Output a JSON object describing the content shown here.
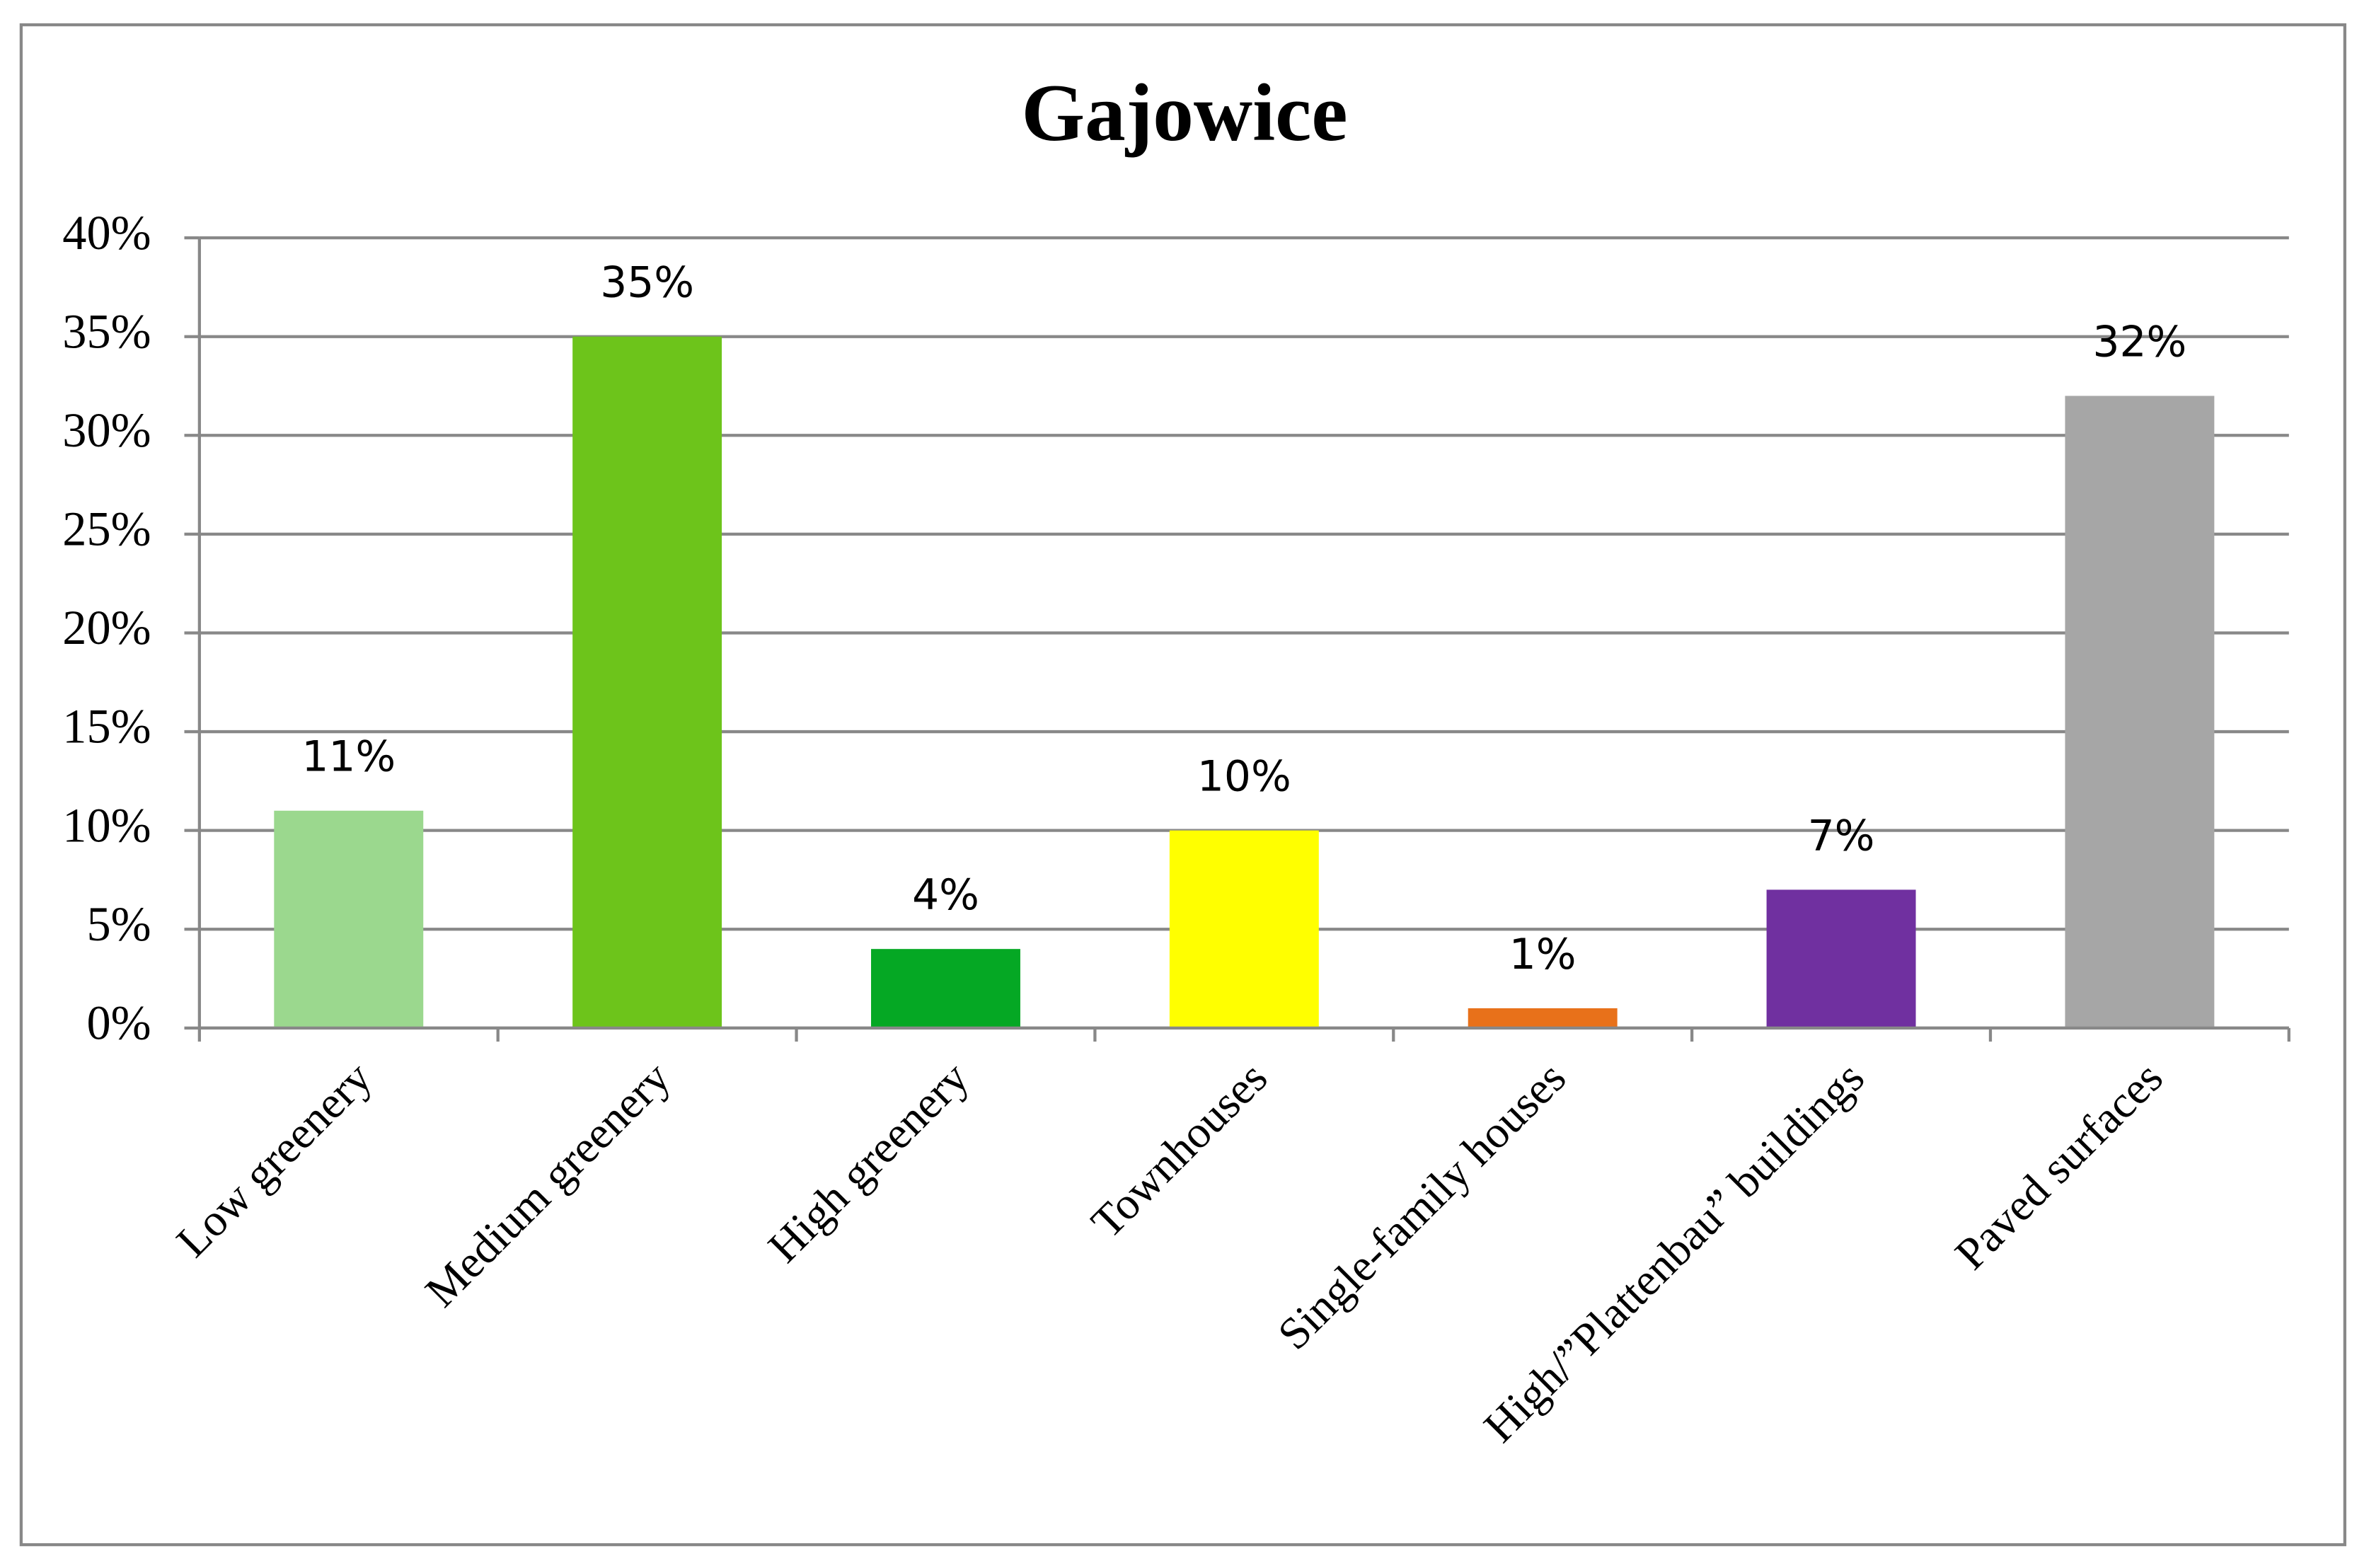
{
  "chart_data": {
    "type": "bar",
    "title": "Gajowice",
    "categories": [
      "Low greenery",
      "Medium greenery",
      "High greenery",
      "Townhouses",
      "Single-family houses",
      "High/”Plattenbau” buildings",
      "Paved surfaces"
    ],
    "values": [
      11,
      35,
      4,
      10,
      1,
      7,
      32
    ],
    "value_labels": [
      "11%",
      "35%",
      "4%",
      "10%",
      "1%",
      "7%",
      "32%"
    ],
    "colors": [
      "#9bd88e",
      "#6dc41b",
      "#05a824",
      "#ffff00",
      "#e8711a",
      "#7030a0",
      "#a6a6a6"
    ],
    "ylim": [
      0,
      40
    ],
    "yticks": [
      {
        "value": 0,
        "label": "0%"
      },
      {
        "value": 5,
        "label": "5%"
      },
      {
        "value": 10,
        "label": "10%"
      },
      {
        "value": 15,
        "label": "15%"
      },
      {
        "value": 20,
        "label": "20%"
      },
      {
        "value": 25,
        "label": "25%"
      },
      {
        "value": 30,
        "label": "30%"
      },
      {
        "value": 35,
        "label": "35%"
      },
      {
        "value": 40,
        "label": "40%"
      }
    ],
    "grid": true
  }
}
